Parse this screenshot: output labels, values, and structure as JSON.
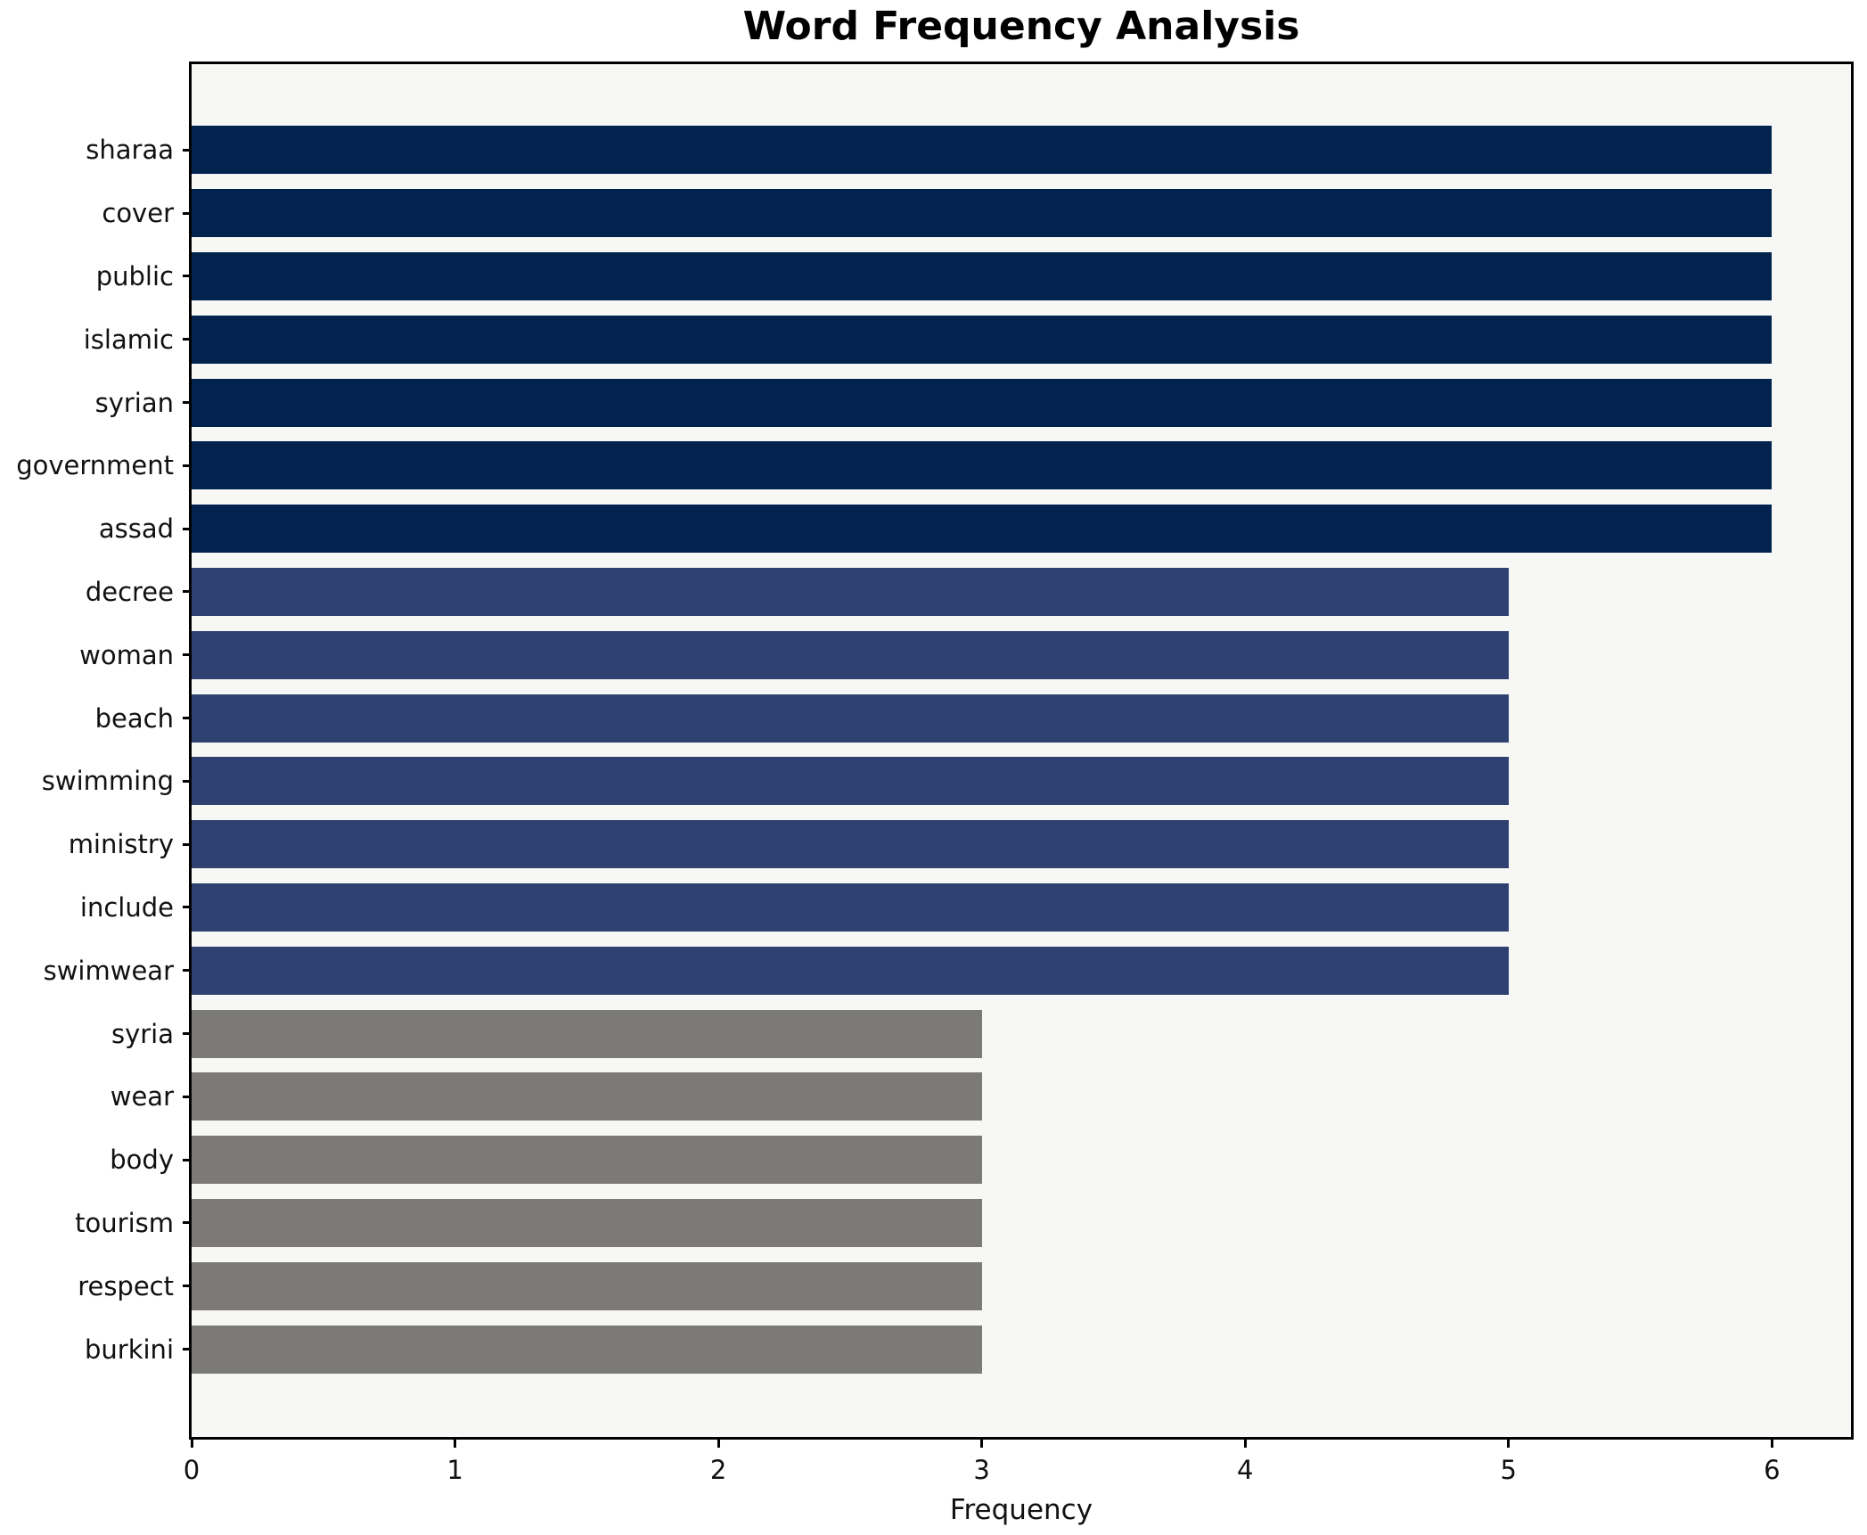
{
  "chart_data": {
    "type": "bar",
    "orientation": "horizontal",
    "title": "Word Frequency Analysis",
    "xlabel": "Frequency",
    "ylabel": "",
    "categories": [
      "sharaa",
      "cover",
      "public",
      "islamic",
      "syrian",
      "government",
      "assad",
      "decree",
      "woman",
      "beach",
      "swimming",
      "ministry",
      "include",
      "swimwear",
      "syria",
      "wear",
      "body",
      "tourism",
      "respect",
      "burkini"
    ],
    "values": [
      6,
      6,
      6,
      6,
      6,
      6,
      6,
      5,
      5,
      5,
      5,
      5,
      5,
      5,
      3,
      3,
      3,
      3,
      3,
      3
    ],
    "bar_colors": [
      "#02234e",
      "#02234e",
      "#02234e",
      "#02234e",
      "#02234e",
      "#02234e",
      "#02234e",
      "#2e4170",
      "#2e4170",
      "#2e4170",
      "#2e4170",
      "#2e4170",
      "#2e4170",
      "#2e4170",
      "#7b7a77",
      "#7b7a77",
      "#7b7a77",
      "#7b7a77",
      "#7b7a77",
      "#7b7a77"
    ],
    "xticks": [
      "0",
      "1",
      "2",
      "3",
      "4",
      "5",
      "6"
    ],
    "xlim": [
      0,
      6.3
    ],
    "grid": false,
    "legend": "none",
    "colors": {
      "high_frequency": "#02234e",
      "mid_frequency": "#2e4170",
      "low_frequency": "#7b7a77",
      "plot_background": "#f7f7f6",
      "figure_background": "#ffffff",
      "axis": "#000000",
      "text": "#111111"
    }
  }
}
